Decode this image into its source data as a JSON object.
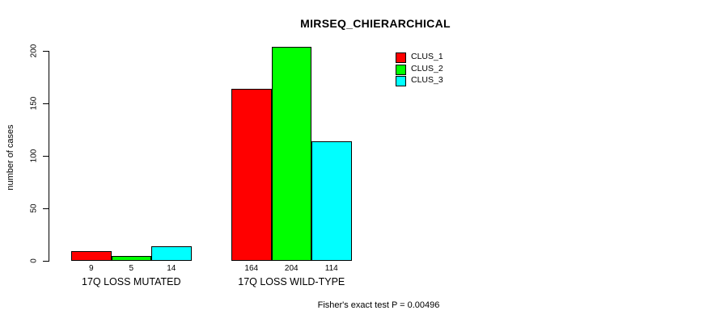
{
  "chart_data": {
    "type": "bar",
    "title": "MIRSEQ_CHIERARCHICAL",
    "ylabel": "number of cases",
    "xlabel": "",
    "ylim": [
      0,
      200
    ],
    "yticks": [
      0,
      50,
      100,
      150,
      200
    ],
    "categories": [
      "17Q LOSS MUTATED",
      "17Q LOSS WILD-TYPE"
    ],
    "series": [
      {
        "name": "CLUS_1",
        "color": "#ff0000",
        "values": [
          9,
          164
        ]
      },
      {
        "name": "CLUS_2",
        "color": "#00ff00",
        "values": [
          5,
          204
        ]
      },
      {
        "name": "CLUS_3",
        "color": "#00ffff",
        "values": [
          14,
          114
        ]
      }
    ],
    "bar_value_labels": [
      [
        "9",
        "5",
        "14"
      ],
      [
        "164",
        "204",
        "114"
      ]
    ],
    "legend_position": "top-right",
    "grid": false,
    "footer": "Fisher's exact test P = 0.00496"
  }
}
